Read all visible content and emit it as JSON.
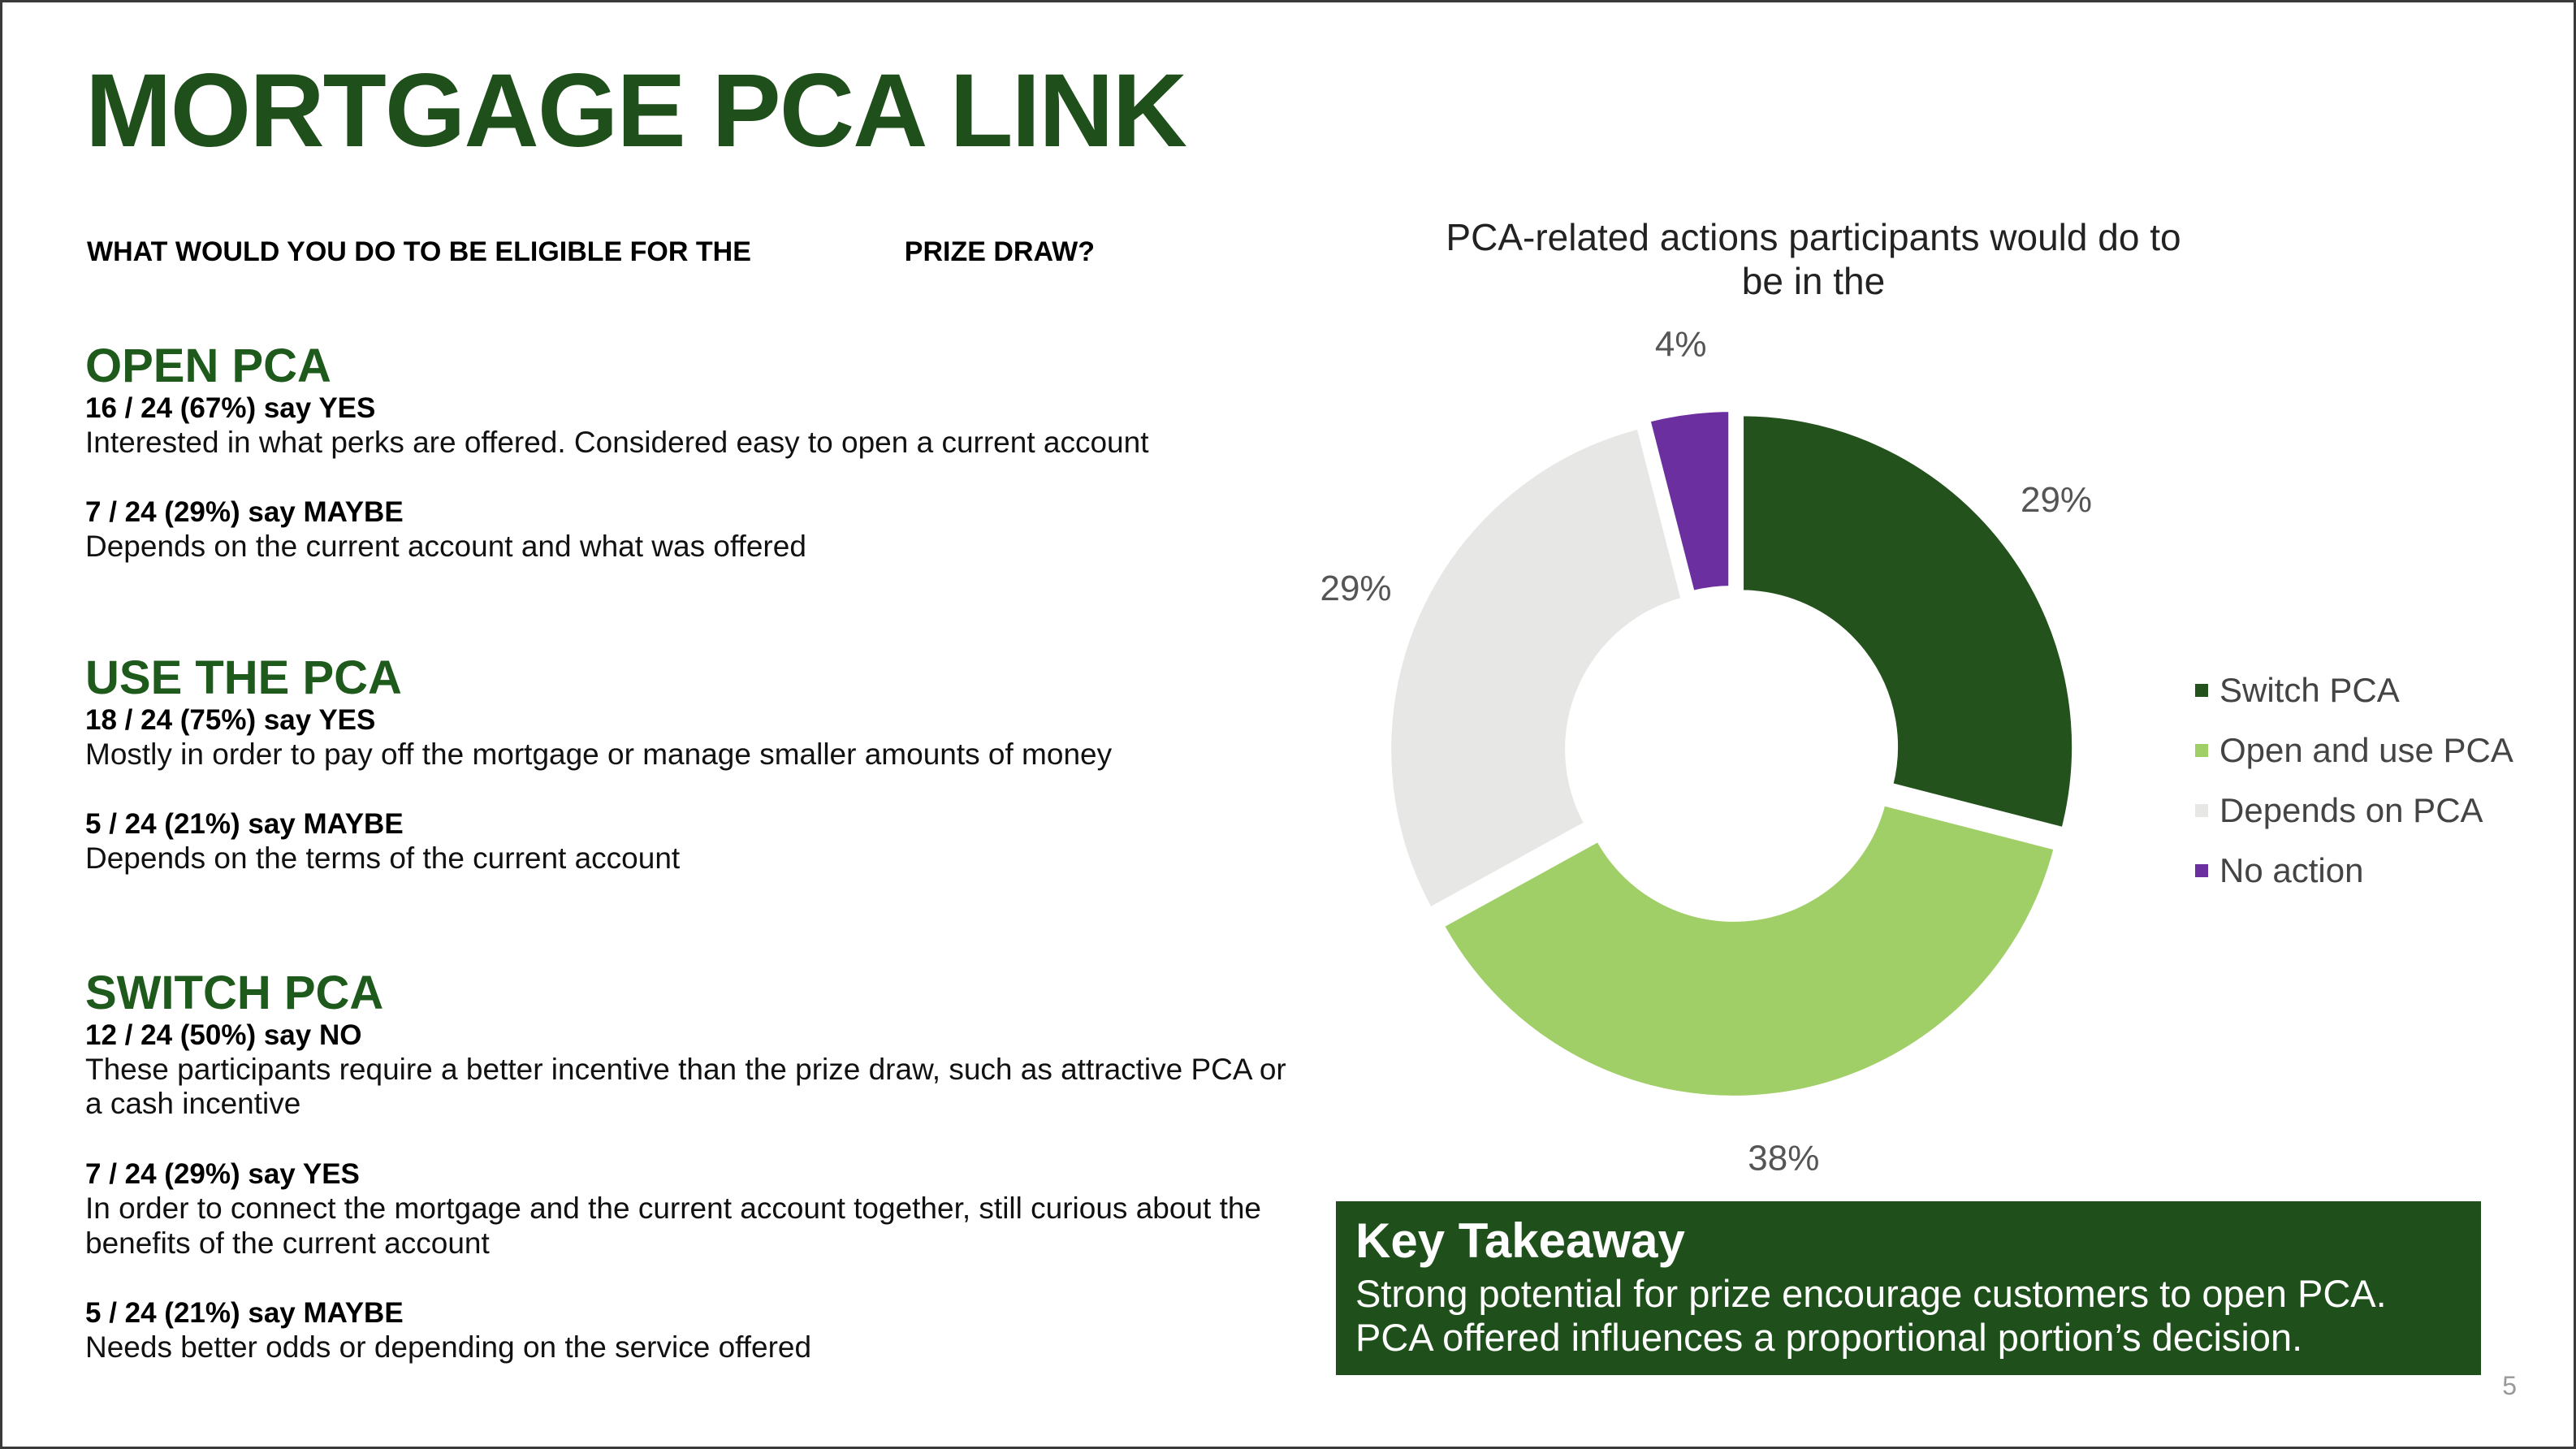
{
  "slide": {
    "title": "MORTGAGE PCA LINK",
    "question": "WHAT WOULD YOU DO TO BE ELIGIBLE FOR THE                    PRIZE DRAW?",
    "page_number": "5"
  },
  "sections": [
    {
      "heading": "OPEN PCA",
      "entries": [
        {
          "stat": "16 / 24 (67%) say YES",
          "desc": "Interested in what perks are offered. Considered easy to open a current account"
        },
        {
          "stat": "7 / 24 (29%) say MAYBE",
          "desc": "Depends on the current account and what was offered"
        }
      ]
    },
    {
      "heading": "USE THE PCA",
      "entries": [
        {
          "stat": "18 / 24 (75%) say YES",
          "desc": "Mostly in order to pay off the mortgage or manage smaller amounts of money"
        },
        {
          "stat": "5 / 24 (21%) say MAYBE",
          "desc": "Depends on the terms of the current account"
        }
      ]
    },
    {
      "heading": "SWITCH PCA",
      "entries": [
        {
          "stat": "12 / 24 (50%) say NO",
          "desc": "These participants require a better incentive than the prize draw, such as attractive PCA or a cash incentive"
        },
        {
          "stat": "7 / 24 (29%) say YES",
          "desc": "In order to connect the mortgage and the current account together, still curious about the benefits of the current account"
        },
        {
          "stat": "5 / 24 (21%) say MAYBE",
          "desc": "Needs better odds or depending on the service offered"
        }
      ]
    }
  ],
  "chart_data": {
    "type": "pie",
    "title": "PCA-related actions participants would do to be in the",
    "donut": true,
    "labels": [
      "Switch PCA",
      "Open and use PCA",
      "Depends on PCA",
      "No action"
    ],
    "values": [
      29,
      38,
      29,
      4
    ],
    "value_labels": [
      "29%",
      "38%",
      "29%",
      "4%"
    ],
    "colors": [
      "#23521c",
      "#a0cf68",
      "#e7e8e6",
      "#6b2fa0"
    ],
    "legend_position": "right",
    "exploded": true
  },
  "takeaway": {
    "heading": "Key Takeaway",
    "line1": "Strong potential for prize encourage customers to open PCA.",
    "line2": "PCA offered influences a proportional portion’s decision."
  }
}
